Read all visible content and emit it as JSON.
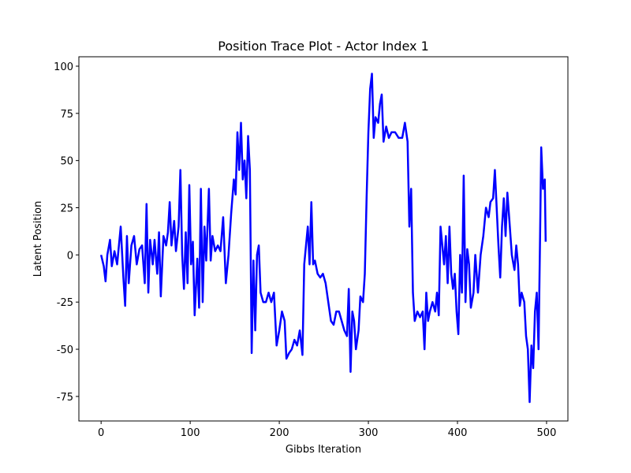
{
  "chart_data": {
    "type": "line",
    "title": "Position Trace Plot - Actor Index 1",
    "x_label": "Gibbs Iteration",
    "y_label": "Latent Position",
    "xlim": [
      -24.95,
      523.95
    ],
    "ylim": [
      -88,
      105
    ],
    "xticks": [
      0,
      100,
      200,
      300,
      400,
      500
    ],
    "yticks": [
      -75,
      -50,
      -25,
      0,
      25,
      50,
      75,
      100
    ],
    "grid": false,
    "x": [
      0,
      3,
      5,
      7,
      10,
      12,
      15,
      18,
      22,
      25,
      27,
      29,
      31,
      34,
      37,
      40,
      43,
      46,
      49,
      51,
      53,
      55,
      58,
      60,
      63,
      65,
      67,
      70,
      73,
      75,
      77,
      79,
      82,
      84,
      87,
      89,
      91,
      93,
      95,
      97,
      99,
      101,
      103,
      105,
      108,
      110,
      112,
      114,
      116,
      118,
      121,
      123,
      125,
      128,
      131,
      134,
      137,
      140,
      143,
      146,
      149,
      151,
      153,
      155,
      157,
      159,
      161,
      163,
      165,
      167,
      169,
      171,
      173,
      175,
      177,
      179,
      182,
      185,
      188,
      191,
      194,
      197,
      200,
      203,
      206,
      208,
      211,
      214,
      217,
      220,
      223,
      226,
      228,
      230,
      232,
      234,
      236,
      238,
      240,
      243,
      246,
      249,
      252,
      255,
      258,
      261,
      264,
      267,
      270,
      273,
      276,
      278,
      280,
      282,
      284,
      286,
      289,
      291,
      294,
      296,
      298,
      300,
      302,
      304,
      306,
      308,
      311,
      313,
      315,
      317,
      320,
      323,
      326,
      330,
      334,
      338,
      341,
      344,
      346,
      348,
      350,
      352,
      355,
      358,
      361,
      363,
      365,
      367,
      369,
      372,
      375,
      377,
      379,
      381,
      383,
      385,
      387,
      389,
      391,
      393,
      395,
      397,
      399,
      401,
      403,
      405,
      407,
      409,
      411,
      413,
      415,
      418,
      420,
      423,
      426,
      429,
      432,
      435,
      437,
      440,
      442,
      444,
      446,
      448,
      450,
      452,
      454,
      456,
      458,
      461,
      464,
      466,
      468,
      470,
      472,
      475,
      477,
      479,
      481,
      483,
      485,
      487,
      489,
      491,
      493,
      494,
      496,
      498,
      499
    ],
    "series": [
      {
        "name": "Actor 1",
        "color": "#0000ff",
        "values": [
          0,
          -6,
          -14,
          0,
          8,
          -6,
          2,
          -5,
          15,
          -12,
          -27,
          10,
          -15,
          5,
          10,
          -5,
          3,
          5,
          -15,
          27,
          -20,
          8,
          -5,
          8,
          -10,
          12,
          -22,
          10,
          5,
          12,
          28,
          5,
          18,
          2,
          15,
          45,
          0,
          -18,
          12,
          -15,
          37,
          -5,
          7,
          -32,
          -2,
          -28,
          35,
          -25,
          15,
          -3,
          35,
          -3,
          10,
          2,
          5,
          2,
          20,
          -15,
          0,
          22,
          40,
          32,
          65,
          45,
          70,
          40,
          50,
          30,
          63,
          45,
          -52,
          -3,
          -40,
          0,
          5,
          -20,
          -25,
          -25,
          -20,
          -25,
          -20,
          -48,
          -40,
          -30,
          -35,
          -55,
          -52,
          -50,
          -45,
          -48,
          -40,
          -53,
          -5,
          5,
          15,
          -5,
          28,
          -5,
          -3,
          -10,
          -12,
          -10,
          -15,
          -25,
          -35,
          -37,
          -30,
          -30,
          -35,
          -40,
          -43,
          -18,
          -62,
          -30,
          -35,
          -50,
          -40,
          -22,
          -25,
          -10,
          30,
          65,
          88,
          96,
          62,
          73,
          70,
          80,
          85,
          60,
          68,
          62,
          65,
          65,
          62,
          62,
          70,
          60,
          15,
          35,
          -20,
          -35,
          -30,
          -33,
          -30,
          -50,
          -20,
          -35,
          -30,
          -25,
          -30,
          -20,
          -32,
          15,
          5,
          -5,
          10,
          -15,
          15,
          -10,
          -18,
          -10,
          -30,
          -42,
          0,
          -20,
          42,
          -25,
          3,
          -5,
          -28,
          -20,
          0,
          -20,
          0,
          10,
          25,
          20,
          28,
          30,
          45,
          25,
          5,
          -12,
          15,
          30,
          10,
          33,
          20,
          0,
          -8,
          5,
          -5,
          -27,
          -20,
          -25,
          -43,
          -50,
          -78,
          -48,
          -60,
          -30,
          -20,
          -50,
          20,
          57,
          35,
          40,
          7
        ]
      }
    ]
  }
}
